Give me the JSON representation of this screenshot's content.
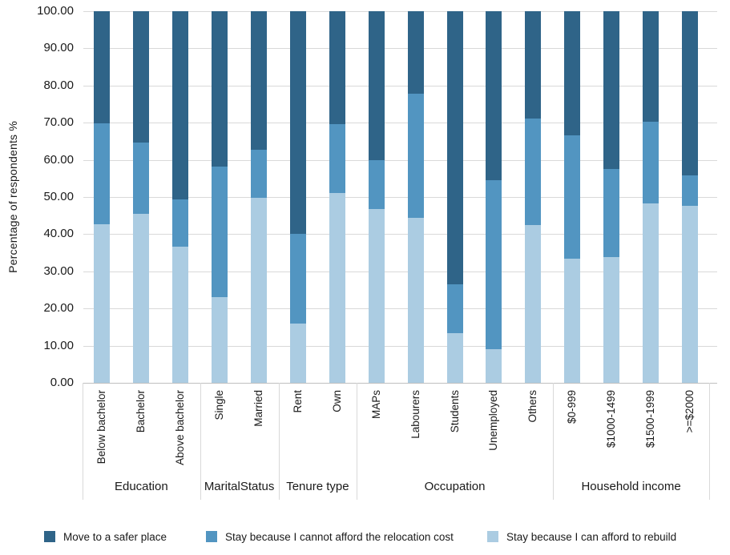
{
  "chart_data": {
    "type": "bar",
    "subtype": "stacked-100-percent",
    "title": "",
    "xlabel": "",
    "ylabel": "Percentage of respondents  %",
    "ylim": [
      0,
      100
    ],
    "grid": true,
    "legend_position": "bottom",
    "y_ticks": [
      "100.00",
      "90.00",
      "80.00",
      "70.00",
      "60.00",
      "50.00",
      "40.00",
      "30.00",
      "20.00",
      "10.00",
      "0.00"
    ],
    "groups": [
      {
        "label": "Education",
        "categories": [
          "Below bachelor",
          "Bachelor",
          "Above bachelor"
        ]
      },
      {
        "label": "MaritalStatus",
        "categories": [
          "Single",
          "Married"
        ]
      },
      {
        "label": "Tenure type",
        "categories": [
          "Rent",
          "Own"
        ]
      },
      {
        "label": "Occupation",
        "categories": [
          "MAPs",
          "Labourers",
          "Students",
          "Unemployed",
          "Others"
        ]
      },
      {
        "label": "Household income",
        "categories": [
          "$0-999",
          "$1000-1499",
          "$1500-1999",
          ">=$2000"
        ]
      }
    ],
    "series": [
      {
        "name": "Stay because I can afford to rebuild",
        "color": "#abcce2",
        "values": [
          42.6,
          45.5,
          36.6,
          23.1,
          49.7,
          15.9,
          51.0,
          46.8,
          44.4,
          13.3,
          9.1,
          42.4,
          33.3,
          33.9,
          48.2,
          47.7
        ]
      },
      {
        "name": "Stay because I cannot afford the relocation cost",
        "color": "#5295c1",
        "values": [
          27.2,
          19.1,
          12.8,
          35.0,
          13.0,
          24.2,
          18.7,
          13.1,
          33.5,
          13.3,
          45.4,
          28.8,
          33.4,
          23.6,
          22.1,
          8.1
        ]
      },
      {
        "name": "Move to a safer place",
        "color": "#2f6488",
        "values": [
          30.2,
          35.4,
          50.6,
          41.9,
          37.3,
          59.9,
          30.3,
          40.1,
          22.1,
          73.4,
          45.5,
          28.8,
          33.3,
          42.5,
          29.7,
          44.2
        ]
      }
    ],
    "legend": [
      {
        "label": "Move to a safer place",
        "color": "#2f6488"
      },
      {
        "label": "Stay because I cannot afford the relocation cost",
        "color": "#5295c1"
      },
      {
        "label": "Stay because I can afford to rebuild",
        "color": "#abcce2"
      }
    ]
  }
}
